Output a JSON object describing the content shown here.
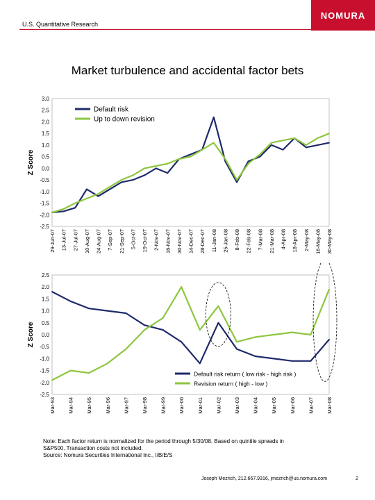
{
  "header": {
    "section": "U.S. Quantitative Research",
    "logo": "NOMURA"
  },
  "title": "Market turbulence and accidental factor bets",
  "chart_data": [
    {
      "type": "line",
      "ylabel": "Z Score",
      "ylim": [
        -2.5,
        3.0
      ],
      "yticks": [
        3.0,
        2.5,
        2.0,
        1.5,
        1.0,
        0.5,
        0.0,
        -0.5,
        -1.0,
        -1.5,
        -2.0,
        -2.5
      ],
      "ytick_labels": [
        "3.0",
        "2.5",
        "2.0",
        "1.5",
        "1.0",
        "0.5",
        "0.0",
        "-0.5",
        "-1.0",
        "-1.5",
        "-2.0",
        "-2.5"
      ],
      "categories": [
        "29-Jun-07",
        "13-Jul-07",
        "27-Jul-07",
        "10-Aug-07",
        "24-Aug-07",
        "7-Sep-07",
        "21-Sep-07",
        "5-Oct-07",
        "19-Oct-07",
        "2-Nov-07",
        "16-Nov-07",
        "30-Nov-07",
        "14-Dec-07",
        "28-Dec-07",
        "11-Jan-08",
        "25-Jan-08",
        "8-Feb-08",
        "22-Feb-08",
        "7-Mar-08",
        "21-Mar-08",
        "4-Apr-08",
        "18-Apr-08",
        "2-May-08",
        "16-May-08",
        "30-May-08"
      ],
      "legend_position": "top-left",
      "series": [
        {
          "name": "Default risk",
          "color": "#1f2a6b",
          "values": [
            -1.9,
            -1.85,
            -1.7,
            -0.9,
            -1.2,
            -0.9,
            -0.6,
            -0.5,
            -0.3,
            0.0,
            -0.2,
            0.4,
            0.6,
            0.8,
            2.2,
            0.3,
            -0.6,
            0.3,
            0.5,
            1.0,
            0.8,
            1.3,
            0.9,
            1.0,
            1.1
          ]
        },
        {
          "name": "Up to down revision",
          "color": "#8dc63f",
          "values": [
            -1.9,
            -1.75,
            -1.5,
            -1.3,
            -1.1,
            -0.8,
            -0.5,
            -0.3,
            0.0,
            0.1,
            0.2,
            0.4,
            0.5,
            0.8,
            1.1,
            0.4,
            -0.5,
            0.2,
            0.6,
            1.1,
            1.2,
            1.3,
            1.0,
            1.3,
            1.5
          ]
        }
      ]
    },
    {
      "type": "line",
      "ylabel": "Z Score",
      "ylim": [
        -2.5,
        2.5
      ],
      "yticks": [
        2.5,
        2.0,
        1.5,
        1.0,
        0.5,
        0.0,
        -0.5,
        -1.0,
        -1.5,
        -2.0,
        -2.5
      ],
      "ytick_labels": [
        "2.5",
        "2.0",
        "1.5",
        "1.0",
        "0.5",
        "0.0",
        "-0.5",
        "-1.0",
        "-1.5",
        "-2.0",
        "-2.5"
      ],
      "categories": [
        "Mar-93",
        "Mar-94",
        "Mar-95",
        "Mar-96",
        "Mar-97",
        "Mar-98",
        "Mar-99",
        "Mar-00",
        "Mar-01",
        "Mar-02",
        "Mar-03",
        "Mar-04",
        "Mar-05",
        "Mar-06",
        "Mar-07",
        "Mar-08"
      ],
      "legend_position": "bottom-right",
      "series": [
        {
          "name": "Default risk return ( low risk - high risk )",
          "color": "#1f2a6b",
          "values": [
            1.8,
            1.4,
            1.1,
            1.0,
            0.9,
            0.4,
            0.2,
            -0.3,
            -1.2,
            0.5,
            -0.6,
            -0.9,
            -1.0,
            -1.1,
            -1.1,
            -0.2
          ]
        },
        {
          "name": "Revision return ( high - low )",
          "color": "#8dc63f",
          "values": [
            -1.9,
            -1.5,
            -1.6,
            -1.2,
            -0.6,
            0.2,
            0.7,
            2.0,
            0.2,
            1.2,
            -0.3,
            -0.1,
            0.0,
            0.1,
            0.0,
            1.9
          ]
        }
      ],
      "annotations": [
        "circle around Mar-02 peak",
        "circle around Mar-08"
      ]
    }
  ],
  "note": {
    "line1": "Note: Each factor return is normalized for the period through 5/30/08. Based on quintile spreads in",
    "line2": "S&P500. Transaction costs not included.",
    "line3": "Source: Nomura Securities International Inc., I/B/E/S"
  },
  "footer": {
    "contact": "Joseph Mezrich, 212.667.9316, jmezrich@us.nomura.com",
    "page": "2"
  }
}
